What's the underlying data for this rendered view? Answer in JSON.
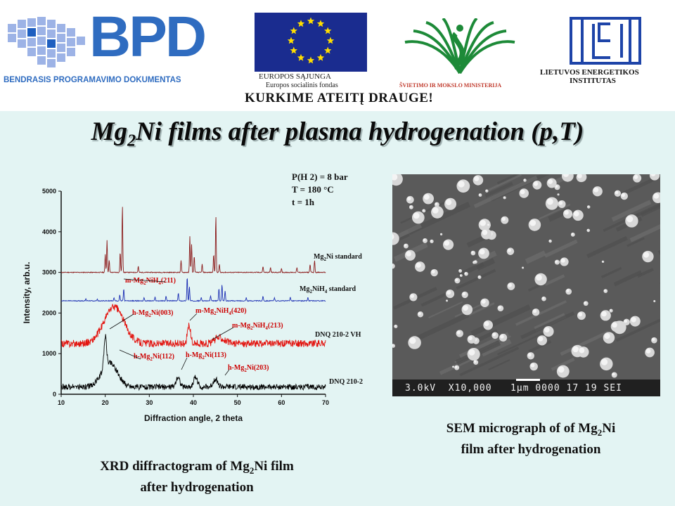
{
  "header": {
    "bpd_logo": "BPD",
    "bpd_subtitle": "BENDRASIS PROGRAMAVIMO DOKUMENTAS",
    "eu_line1": "EUROPOS SĄJUNGA",
    "eu_line2": "Europos socialinis fondas",
    "ministry": "ŠVIETIMO IR MOKSLO MINISTERIJA",
    "lei_line1": "LIETUVOS ENERGETIKOS",
    "lei_line2": "INSTITUTAS",
    "slogan": "KURKIME ATEITĮ DRAUGE!"
  },
  "slide": {
    "title_a": "Mg",
    "title_sub": "2",
    "title_b": "Ni films after plasma hydrogenation (p,T)",
    "xrd_caption_a": "XRD diffractogram of Mg",
    "xrd_caption_sub": "2",
    "xrd_caption_b": "Ni film",
    "xrd_caption_line2": "after hydrogenation",
    "sem_caption_a": "SEM micrograph of of Mg",
    "sem_caption_sub": "2",
    "sem_caption_b": "Ni",
    "sem_caption_line2": "film after hydrogenation",
    "sem_readout": "3.0kV  X10,000   1μm 0000 17 19 SEI"
  },
  "chart_data": {
    "type": "line",
    "xlabel": "Diffraction angle, 2 theta",
    "ylabel": "Intensity, arb.u.",
    "xlim": [
      10,
      70
    ],
    "ylim": [
      0,
      5000
    ],
    "xticks": [
      10,
      20,
      30,
      40,
      50,
      60,
      70
    ],
    "yticks": [
      0,
      1000,
      2000,
      3000,
      4000,
      5000
    ],
    "conditions": [
      "P(H 2) = 8 bar",
      "T = 180 °C",
      "t = 1h"
    ],
    "series": [
      {
        "name": "Mg2Ni standard",
        "color": "#8b1a1a",
        "baseline": 3000,
        "peaks": [
          [
            20.0,
            450
          ],
          [
            20.4,
            800
          ],
          [
            20.9,
            300
          ],
          [
            23.4,
            500
          ],
          [
            23.9,
            1650
          ],
          [
            27.5,
            150
          ],
          [
            37.2,
            300
          ],
          [
            39.2,
            900
          ],
          [
            39.6,
            700
          ],
          [
            40.2,
            400
          ],
          [
            42.0,
            200
          ],
          [
            44.6,
            450
          ],
          [
            45.1,
            1400
          ],
          [
            45.9,
            200
          ],
          [
            55.8,
            150
          ],
          [
            57.5,
            120
          ],
          [
            60.0,
            100
          ],
          [
            63.5,
            120
          ],
          [
            66.5,
            200
          ],
          [
            67.5,
            300
          ]
        ]
      },
      {
        "name": "Mg2NiH4 standard",
        "color": "#1c2fb4",
        "baseline": 2300,
        "peaks": [
          [
            15.6,
            60
          ],
          [
            18.2,
            40
          ],
          [
            22.0,
            80
          ],
          [
            23.3,
            150
          ],
          [
            24.2,
            300
          ],
          [
            28.8,
            80
          ],
          [
            31.3,
            90
          ],
          [
            33.8,
            120
          ],
          [
            36.6,
            200
          ],
          [
            38.6,
            600
          ],
          [
            39.1,
            350
          ],
          [
            41.8,
            80
          ],
          [
            43.9,
            120
          ],
          [
            45.8,
            300
          ],
          [
            46.5,
            400
          ],
          [
            47.2,
            250
          ],
          [
            52.0,
            80
          ],
          [
            55.8,
            120
          ],
          [
            58.4,
            80
          ],
          [
            62.0,
            100
          ],
          [
            66.0,
            80
          ]
        ]
      },
      {
        "name": "DNQ 210-2 VH",
        "color": "#e3140f",
        "baseline": 1250,
        "humps": [
          [
            22.0,
            900,
            3.2
          ],
          [
            39.0,
            450,
            0.5
          ],
          [
            46.0,
            150,
            1.5
          ]
        ],
        "noise": 90
      },
      {
        "name": "DNQ 210-2",
        "color": "#000000",
        "baseline": 180,
        "humps": [
          [
            20.0,
            750,
            0.4
          ],
          [
            21.0,
            600,
            2.5
          ],
          [
            36.5,
            250,
            0.6
          ],
          [
            40.5,
            250,
            0.6
          ],
          [
            45.0,
            200,
            0.7
          ]
        ],
        "noise": 70
      }
    ],
    "annotations": [
      {
        "text": "m-Mg2NiH4(211)",
        "color": "#cc0000"
      },
      {
        "text": "h-Mg2Ni(003)",
        "color": "#cc0000"
      },
      {
        "text": "m-Mg2NiH4(420)",
        "color": "#cc0000"
      },
      {
        "text": "m-Mg2NiH4(213)",
        "color": "#cc0000"
      },
      {
        "text": "h-Mg2Ni(112)",
        "color": "#cc0000"
      },
      {
        "text": "h-Mg2Ni(113)",
        "color": "#cc0000"
      },
      {
        "text": "h-Mg2Ni(203)",
        "color": "#cc0000"
      }
    ]
  }
}
